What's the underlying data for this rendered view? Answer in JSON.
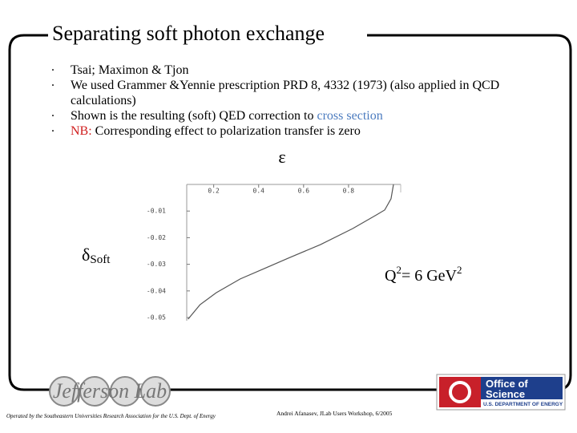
{
  "slide": {
    "title": "Separating soft photon exchange",
    "bullets": [
      [
        "Tsai; Maximon & Tjon"
      ],
      [
        "We used Grammer &Yennie prescription PRD 8, 4332 (1973) (also applied in QCD calculations)"
      ],
      [
        "Shown is the resulting (soft) QED correction to ",
        "cross section"
      ],
      [
        "NB:",
        " Corresponding effect to polarization transfer is zero"
      ]
    ],
    "logo_left": "Jefferson Lab",
    "operated_by": "Operated by the Southeastern Universities Research Association for the U.S. Dept. of Energy",
    "footer": "Andrei Afanasev, JLab Users Workshop, 6/2005",
    "logo_right": [
      "Office of",
      "Science",
      "U.S. DEPARTMENT OF ENERGY"
    ]
  },
  "chart_data": {
    "type": "line",
    "x_label": "ε",
    "y_label": {
      "symbol": "δ",
      "subscript": "Soft"
    },
    "annotation": [
      "Q",
      "2",
      "= 6 GeV",
      "2"
    ],
    "x": [
      0.086,
      0.139,
      0.211,
      0.318,
      0.425,
      0.532,
      0.675,
      0.818,
      0.925,
      0.961,
      0.989,
      1.0
    ],
    "series": [
      {
        "color": "#555555",
        "values": [
          -0.0506,
          -0.0452,
          -0.0407,
          -0.0355,
          -0.0316,
          -0.0277,
          -0.0226,
          -0.0166,
          -0.0114,
          -0.0096,
          -0.0054,
          0
        ]
      }
    ],
    "xlim": [
      0.08,
      1.0
    ],
    "ylim": [
      -0.0512,
      0
    ],
    "xticks": [
      0.2,
      0.4,
      0.6,
      0.8
    ],
    "yticks": [
      -0.01,
      -0.02,
      -0.03,
      -0.04,
      -0.05
    ]
  }
}
